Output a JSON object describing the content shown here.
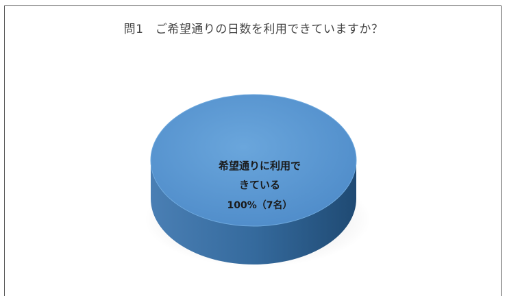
{
  "chart_data": {
    "type": "pie",
    "title": "問1　ご希望通りの日数を利用できていますか？",
    "slices": [
      {
        "label_line1": "希望通りに利用で",
        "label_line2": "きている",
        "percent_label": "100%（7名）",
        "percent": 100,
        "count": 7
      }
    ],
    "colors": {
      "top": "#5b9bd5",
      "side": "#2e5f8e"
    },
    "legend": "none",
    "style": "3d"
  }
}
